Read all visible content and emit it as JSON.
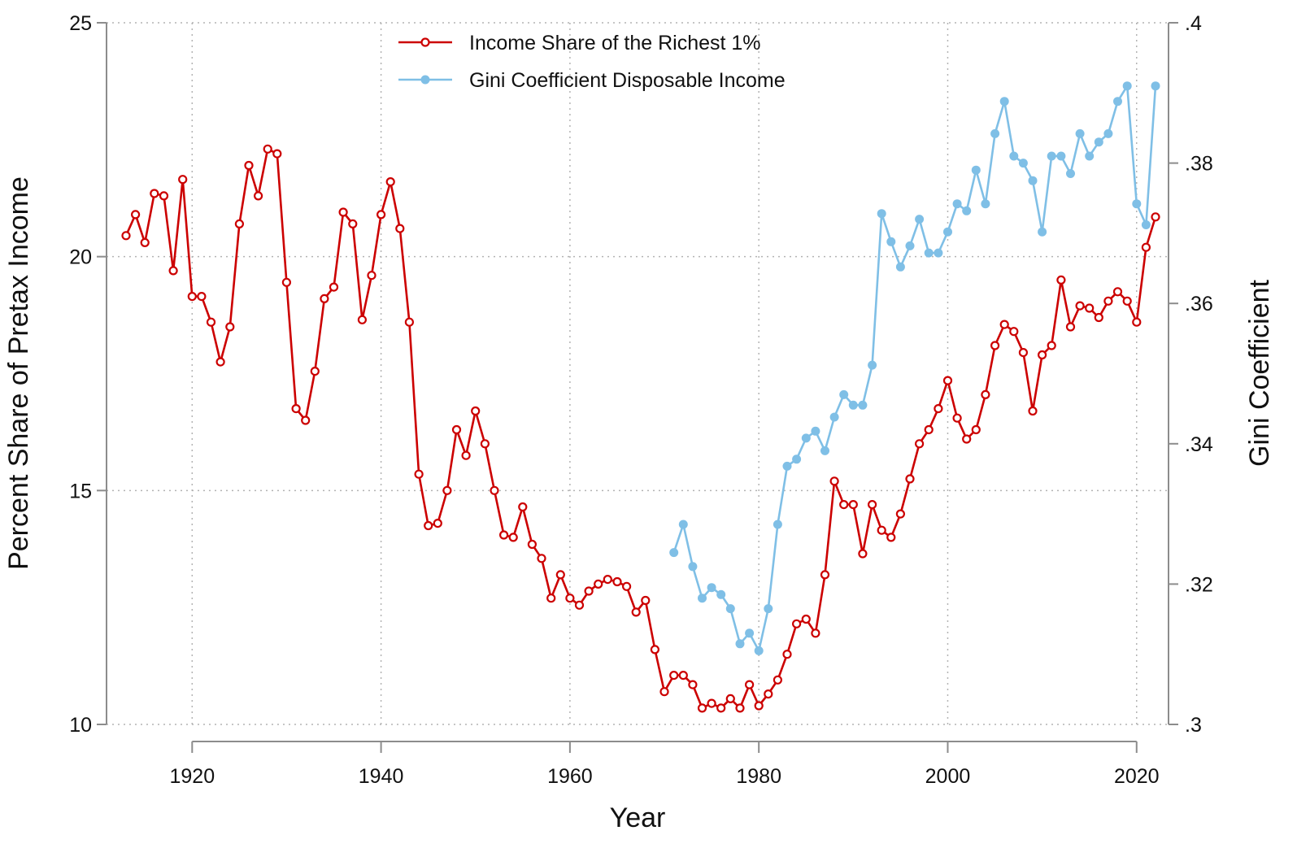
{
  "chart_data": {
    "type": "line",
    "title": "",
    "xlabel": "Year",
    "ylabel_left": "Percent Share of Pretax Income",
    "ylabel_right": "Gini Coefficient",
    "xlim": [
      1913,
      2022
    ],
    "ylim_left": [
      10,
      25
    ],
    "ylim_right": [
      0.3,
      0.4
    ],
    "x_ticks": [
      1920,
      1940,
      1960,
      1980,
      2000,
      2020
    ],
    "x_tick_labels": [
      "1920",
      "1940",
      "1960",
      "1980",
      "2000",
      "2020"
    ],
    "y_left_ticks": [
      10,
      15,
      20,
      25
    ],
    "y_left_tick_labels": [
      "10",
      "15",
      "20",
      "25"
    ],
    "y_right_ticks": [
      0.3,
      0.32,
      0.34,
      0.36,
      0.38,
      0.4
    ],
    "y_right_tick_labels": [
      ".3",
      ".32",
      ".34",
      ".36",
      ".38",
      ".4"
    ],
    "grid": true,
    "legend_position": "top-center",
    "series": [
      {
        "name": "Income Share of the Richest 1%",
        "axis": "left",
        "color": "#cc0000",
        "marker": "hollow-circle",
        "x": [
          1913,
          1914,
          1915,
          1916,
          1917,
          1918,
          1919,
          1920,
          1921,
          1922,
          1923,
          1924,
          1925,
          1926,
          1927,
          1928,
          1929,
          1930,
          1931,
          1932,
          1933,
          1934,
          1935,
          1936,
          1937,
          1938,
          1939,
          1940,
          1941,
          1942,
          1943,
          1944,
          1945,
          1946,
          1947,
          1948,
          1949,
          1950,
          1951,
          1952,
          1953,
          1954,
          1955,
          1956,
          1957,
          1958,
          1959,
          1960,
          1961,
          1962,
          1963,
          1964,
          1965,
          1966,
          1967,
          1968,
          1969,
          1970,
          1971,
          1972,
          1973,
          1974,
          1975,
          1976,
          1977,
          1978,
          1979,
          1980,
          1981,
          1982,
          1983,
          1984,
          1985,
          1986,
          1987,
          1988,
          1989,
          1990,
          1991,
          1992,
          1993,
          1994,
          1995,
          1996,
          1997,
          1998,
          1999,
          2000,
          2001,
          2002,
          2003,
          2004,
          2005,
          2006,
          2007,
          2008,
          2009,
          2010,
          2011,
          2012,
          2013,
          2014,
          2015,
          2016,
          2017,
          2018,
          2019,
          2020,
          2021,
          2022
        ],
        "values": [
          20.45,
          20.9,
          20.3,
          21.35,
          21.3,
          19.7,
          21.65,
          19.15,
          19.15,
          18.6,
          17.75,
          18.5,
          20.7,
          21.95,
          21.3,
          22.3,
          22.2,
          19.45,
          16.75,
          16.5,
          17.55,
          19.1,
          19.35,
          20.95,
          20.7,
          18.65,
          19.6,
          20.9,
          21.6,
          20.6,
          18.6,
          15.35,
          14.25,
          14.3,
          15.0,
          16.3,
          15.75,
          16.7,
          16.0,
          15.0,
          14.05,
          14.0,
          14.65,
          13.85,
          13.55,
          12.7,
          13.2,
          12.7,
          12.55,
          12.85,
          13.0,
          13.1,
          13.05,
          12.95,
          12.4,
          12.65,
          11.6,
          10.7,
          11.05,
          11.05,
          10.85,
          10.35,
          10.45,
          10.35,
          10.55,
          10.35,
          10.85,
          10.4,
          10.65,
          10.95,
          11.5,
          12.15,
          12.25,
          11.95,
          13.2,
          15.2,
          14.7,
          14.7,
          13.65,
          14.7,
          14.15,
          14.0,
          14.5,
          15.25,
          16.0,
          16.3,
          16.75,
          17.35,
          16.55,
          16.1,
          16.3,
          17.05,
          18.1,
          18.55,
          18.4,
          17.95,
          16.7,
          17.9,
          18.1,
          19.5,
          18.5,
          18.95,
          18.9,
          18.7,
          19.05,
          19.25,
          19.05,
          18.6,
          20.2,
          20.85
        ]
      },
      {
        "name": "Gini Coefficient Disposable Income",
        "axis": "right",
        "color": "#7fbfe6",
        "marker": "filled-circle",
        "x": [
          1971,
          1972,
          1973,
          1974,
          1975,
          1976,
          1977,
          1978,
          1979,
          1980,
          1981,
          1982,
          1983,
          1984,
          1985,
          1986,
          1987,
          1988,
          1989,
          1990,
          1991,
          1992,
          1993,
          1994,
          1995,
          1996,
          1997,
          1998,
          1999,
          2000,
          2001,
          2002,
          2003,
          2004,
          2005,
          2006,
          2007,
          2008,
          2009,
          2010,
          2011,
          2012,
          2013,
          2014,
          2015,
          2016,
          2017,
          2018,
          2019,
          2020,
          2021,
          2022
        ],
        "values": [
          0.3245,
          0.3285,
          0.3225,
          0.318,
          0.3195,
          0.3185,
          0.3165,
          0.3115,
          0.313,
          0.3105,
          0.3165,
          0.3285,
          0.3368,
          0.3378,
          0.3408,
          0.3418,
          0.339,
          0.3438,
          0.347,
          0.3455,
          0.3455,
          0.3512,
          0.3728,
          0.3688,
          0.3652,
          0.3682,
          0.372,
          0.3672,
          0.3672,
          0.3702,
          0.3742,
          0.3732,
          0.379,
          0.3742,
          0.3842,
          0.3888,
          0.381,
          0.38,
          0.3775,
          0.3702,
          0.381,
          0.381,
          0.3785,
          0.3842,
          0.381,
          0.383,
          0.3842,
          0.3888,
          0.391,
          0.3742,
          0.3712,
          0.391
        ]
      }
    ]
  }
}
